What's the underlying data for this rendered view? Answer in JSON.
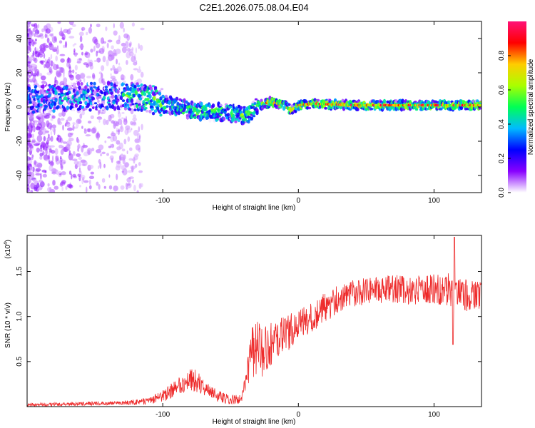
{
  "title": "C2E1.2026.075.08.04.E04",
  "colors": {
    "snr_line": "#ee2b2b",
    "axis": "#000000",
    "background": "#ffffff"
  },
  "chart_data": [
    {
      "type": "heatmap",
      "name": "spectrogram",
      "title": "C2E1.2026.075.08.04.E04",
      "xlabel": "Height of straight line (km)",
      "ylabel": "Frequency (Hz)",
      "xlim": [
        -200,
        135
      ],
      "ylim": [
        -50,
        50
      ],
      "xticks": [
        -100,
        0,
        100
      ],
      "yticks": [
        -40,
        -20,
        0,
        20,
        40
      ],
      "grid": false,
      "ridge_center_hz": {
        "x": [
          -200,
          -160,
          -130,
          -110,
          -95,
          -80,
          -65,
          -55,
          -45,
          -38,
          -30,
          -20,
          -10,
          -5,
          0,
          10,
          40,
          80,
          120,
          135
        ],
        "y": [
          4,
          6,
          7,
          5,
          1,
          -2,
          -3,
          -3,
          -4,
          -5,
          1,
          3,
          1,
          -2,
          1,
          2,
          1,
          1,
          1,
          1
        ]
      },
      "colorbar": {
        "label": "Normalized spectral amplitude",
        "range": [
          0.0,
          1.0
        ],
        "ticks": [
          "0.0",
          "0.2",
          "0.4",
          "0.6",
          "0.8"
        ],
        "colormap": [
          "#ffffff",
          "#8800ff",
          "#0000ff",
          "#00bbff",
          "#00ff55",
          "#aaff00",
          "#ffcc00",
          "#ff0000",
          "#ff1177"
        ]
      }
    },
    {
      "type": "line",
      "name": "snr",
      "xlabel": "Height of straight line (km)",
      "ylabel": "SNR (10 * v/v)",
      "y_scale_label": "(x10",
      "y_scale_exp": "4",
      "xlim": [
        -200,
        135
      ],
      "ylim": [
        0,
        19000
      ],
      "xticks": [
        -100,
        0,
        100
      ],
      "yticks": [
        5000,
        10000,
        15000
      ],
      "ytick_labels": [
        "0.5",
        "1.0",
        "1.5"
      ],
      "grid": false,
      "envelope": {
        "x": [
          -200,
          -130,
          -110,
          -100,
          -90,
          -80,
          -75,
          -70,
          -60,
          -50,
          -42,
          -38,
          -35,
          -32,
          -30,
          -25,
          -20,
          -10,
          0,
          10,
          20,
          30,
          40,
          60,
          80,
          100,
          110,
          120,
          135
        ],
        "y_mean": [
          200,
          400,
          600,
          1200,
          2000,
          3000,
          2800,
          2000,
          1200,
          800,
          800,
          3000,
          6000,
          6500,
          6000,
          6500,
          7000,
          8000,
          9000,
          10000,
          11000,
          12000,
          12500,
          13000,
          13000,
          13000,
          13000,
          12500,
          12000
        ],
        "y_noise": [
          150,
          150,
          300,
          500,
          700,
          900,
          900,
          700,
          500,
          400,
          400,
          1200,
          2000,
          2500,
          2500,
          2000,
          1700,
          1500,
          1300,
          1200,
          1200,
          1100,
          1100,
          1100,
          1200,
          1200,
          1300,
          1300,
          1300
        ]
      },
      "peak": {
        "x": 115,
        "y": 18800
      },
      "min_dip": {
        "x": 114,
        "y": 6900
      }
    }
  ]
}
